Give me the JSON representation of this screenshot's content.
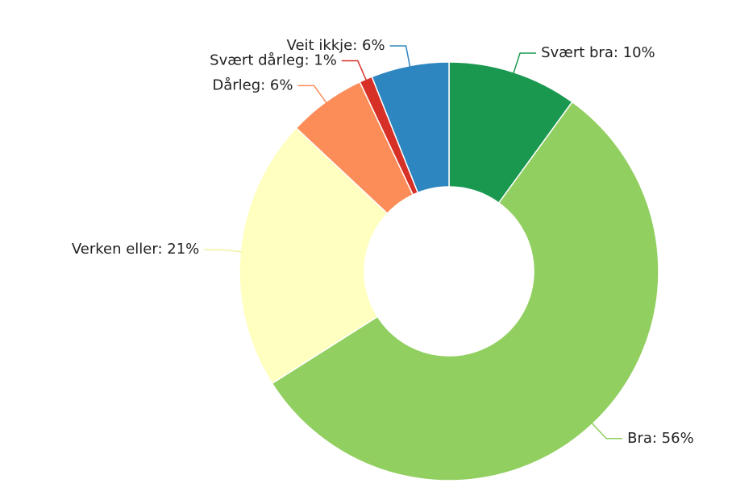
{
  "chart_data": {
    "type": "donut",
    "categories": [
      "Svært bra: 10%",
      "Bra: 56%",
      "Verken eller: 21%",
      "Dårleg: 6%",
      "Svært dårleg: 1%",
      "Veit ikkje: 6%"
    ],
    "values": [
      10,
      56,
      21,
      6,
      1,
      6
    ],
    "colors": [
      "#1a9850",
      "#91cf60",
      "#ffffbf",
      "#fc8d59",
      "#d73027",
      "#2e86c1"
    ]
  }
}
